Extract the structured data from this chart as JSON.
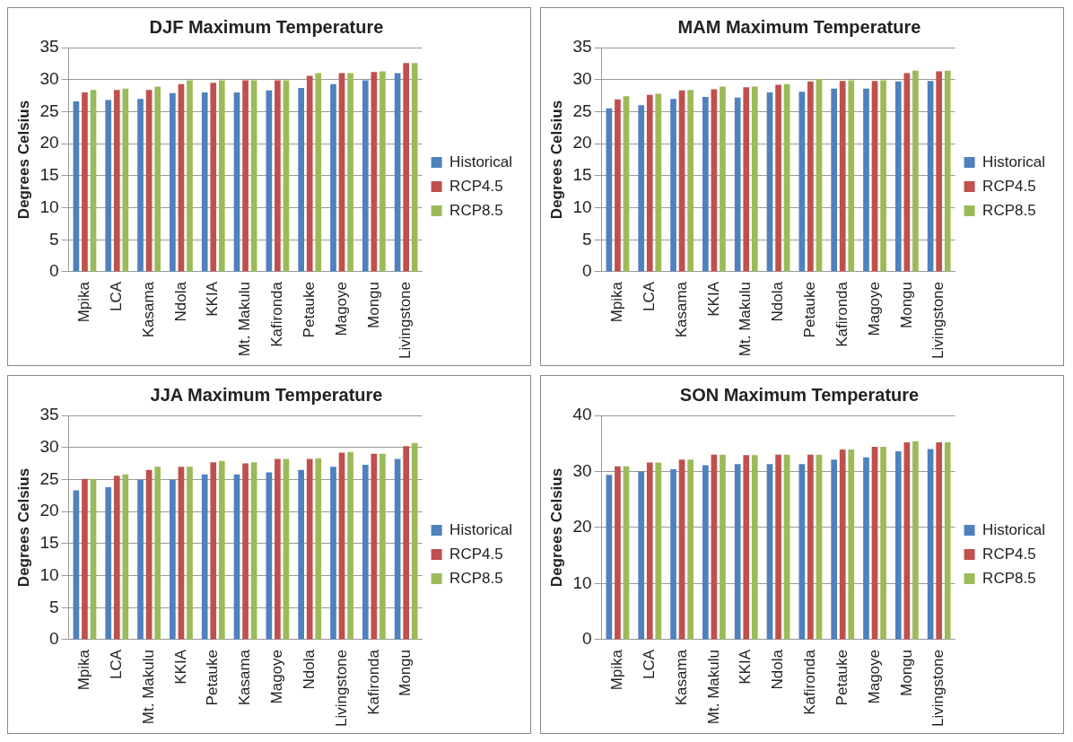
{
  "chart_data": [
    {
      "type": "bar",
      "title": "DJF Maximum Temperature",
      "ylabel": "Degrees Celsius",
      "categories": [
        "Mpika",
        "LCA",
        "Kasama",
        "Ndola",
        "KKIA",
        "Mt. Makulu",
        "Kafironda",
        "Petauke",
        "Magoye",
        "Mongu",
        "Livingstone"
      ],
      "series": [
        {
          "name": "Historical",
          "color": "#4f81bd",
          "values": [
            26.6,
            26.8,
            27.0,
            27.9,
            28.0,
            28.0,
            28.3,
            28.7,
            29.3,
            29.9,
            31.0
          ]
        },
        {
          "name": "RCP4.5",
          "color": "#c0504d",
          "values": [
            28.0,
            28.4,
            28.4,
            29.3,
            29.5,
            29.9,
            29.9,
            30.6,
            31.0,
            31.2,
            32.6
          ]
        },
        {
          "name": "RCP8.5",
          "color": "#9bbb59",
          "values": [
            28.4,
            28.6,
            28.9,
            29.9,
            29.9,
            29.9,
            29.9,
            31.0,
            31.0,
            31.3,
            32.6
          ]
        }
      ],
      "ylim": [
        0,
        35
      ],
      "yticks": [
        0,
        5,
        10,
        15,
        20,
        25,
        30,
        35
      ],
      "grid": "y",
      "legend": "right"
    },
    {
      "type": "bar",
      "title": "MAM Maximum Temperature",
      "ylabel": "Degrees Celsius",
      "categories": [
        "Mpika",
        "LCA",
        "Kasama",
        "KKIA",
        "Mt. Makulu",
        "Ndola",
        "Petauke",
        "Kafironda",
        "Magoye",
        "Mongu",
        "Livingstone"
      ],
      "series": [
        {
          "name": "Historical",
          "color": "#4f81bd",
          "values": [
            25.5,
            26.0,
            27.0,
            27.3,
            27.2,
            28.0,
            28.1,
            28.6,
            28.6,
            29.7,
            29.8
          ]
        },
        {
          "name": "RCP4.5",
          "color": "#c0504d",
          "values": [
            26.9,
            27.6,
            28.3,
            28.5,
            28.8,
            29.2,
            29.7,
            29.8,
            29.8,
            31.0,
            31.3
          ]
        },
        {
          "name": "RCP8.5",
          "color": "#9bbb59",
          "values": [
            27.4,
            27.8,
            28.4,
            28.9,
            28.9,
            29.3,
            30.1,
            29.9,
            29.9,
            31.4,
            31.4
          ]
        }
      ],
      "ylim": [
        0,
        35
      ],
      "yticks": [
        0,
        5,
        10,
        15,
        20,
        25,
        30,
        35
      ],
      "grid": "y",
      "legend": "right"
    },
    {
      "type": "bar",
      "title": "JJA Maximum Temperature",
      "ylabel": "Degrees Celsius",
      "categories": [
        "Mpika",
        "LCA",
        "Mt. Makulu",
        "KKIA",
        "Petauke",
        "Kasama",
        "Magoye",
        "Ndola",
        "Livingstone",
        "Kafironda",
        "Mongu"
      ],
      "series": [
        {
          "name": "Historical",
          "color": "#4f81bd",
          "values": [
            23.3,
            23.8,
            25.0,
            25.0,
            25.8,
            25.8,
            26.1,
            26.5,
            27.0,
            27.3,
            28.2
          ]
        },
        {
          "name": "RCP4.5",
          "color": "#c0504d",
          "values": [
            25.1,
            25.6,
            26.5,
            27.0,
            27.7,
            27.5,
            28.2,
            28.2,
            29.2,
            29.0,
            30.2
          ]
        },
        {
          "name": "RCP8.5",
          "color": "#9bbb59",
          "values": [
            25.1,
            25.8,
            27.0,
            27.0,
            27.9,
            27.7,
            28.2,
            28.3,
            29.3,
            29.0,
            30.7
          ]
        }
      ],
      "ylim": [
        0,
        35
      ],
      "yticks": [
        0,
        5,
        10,
        15,
        20,
        25,
        30,
        35
      ],
      "grid": "y",
      "legend": "right"
    },
    {
      "type": "bar",
      "title": "SON Maximum Temperature",
      "ylabel": "Degrees Celsius",
      "categories": [
        "Mpika",
        "LCA",
        "Kasama",
        "Mt. Makulu",
        "KKIA",
        "Ndola",
        "Kafironda",
        "Petauke",
        "Magoye",
        "Mongu",
        "Livingstone"
      ],
      "series": [
        {
          "name": "Historical",
          "color": "#4f81bd",
          "values": [
            29.4,
            30.0,
            30.4,
            31.1,
            31.3,
            31.3,
            31.3,
            32.1,
            32.5,
            33.6,
            34.0
          ]
        },
        {
          "name": "RCP4.5",
          "color": "#c0504d",
          "values": [
            30.9,
            31.6,
            32.1,
            33.0,
            32.9,
            33.0,
            33.0,
            33.9,
            34.4,
            35.2,
            35.2
          ]
        },
        {
          "name": "RCP8.5",
          "color": "#9bbb59",
          "values": [
            30.9,
            31.6,
            32.1,
            33.0,
            32.9,
            33.0,
            33.0,
            33.9,
            34.4,
            35.4,
            35.2
          ]
        }
      ],
      "ylim": [
        0,
        40
      ],
      "yticks": [
        0,
        10,
        20,
        30,
        40
      ],
      "grid": "y",
      "legend": "right"
    }
  ]
}
